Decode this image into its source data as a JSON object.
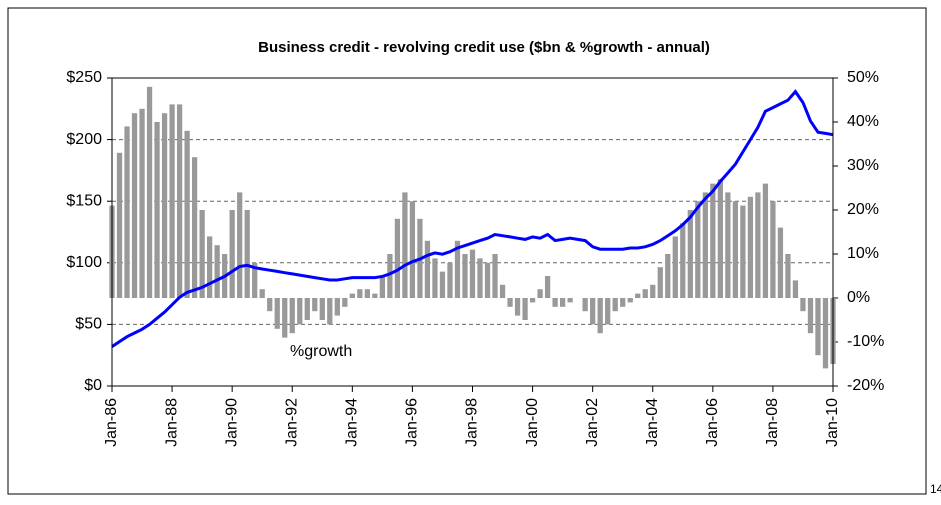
{
  "chart_data": {
    "type": "bar_line",
    "title": "Business credit - revolving credit use ($bn & %growth - annual)",
    "annotations": [
      "%growth"
    ],
    "page_number": "14",
    "categories": [
      "Jan-86",
      null,
      null,
      null,
      null,
      null,
      null,
      null,
      "Jan-88",
      null,
      null,
      null,
      null,
      null,
      null,
      null,
      "Jan-90",
      null,
      null,
      null,
      null,
      null,
      null,
      null,
      "Jan-92",
      null,
      null,
      null,
      null,
      null,
      null,
      null,
      "Jan-94",
      null,
      null,
      null,
      null,
      null,
      null,
      null,
      "Jan-96",
      null,
      null,
      null,
      null,
      null,
      null,
      null,
      "Jan-98",
      null,
      null,
      null,
      null,
      null,
      null,
      null,
      "Jan-00",
      null,
      null,
      null,
      null,
      null,
      null,
      null,
      "Jan-02",
      null,
      null,
      null,
      null,
      null,
      null,
      null,
      "Jan-04",
      null,
      null,
      null,
      null,
      null,
      null,
      null,
      "Jan-06",
      null,
      null,
      null,
      null,
      null,
      null,
      null,
      "Jan-08",
      null,
      null,
      null,
      null,
      null,
      null,
      null,
      "Jan-10"
    ],
    "series": [
      {
        "name": "%growth",
        "type": "bar",
        "axis": "y2",
        "color": "#999999",
        "values": [
          21,
          33,
          39,
          42,
          43,
          48,
          40,
          42,
          44,
          44,
          38,
          32,
          20,
          14,
          12,
          10,
          20,
          24,
          20,
          8,
          2,
          -3,
          -7,
          -9,
          -8,
          -6,
          -5,
          -3,
          -5,
          -6,
          -4,
          -2,
          1,
          2,
          2,
          1,
          5,
          10,
          18,
          24,
          22,
          18,
          13,
          9,
          6,
          8,
          13,
          10,
          11,
          9,
          8,
          10,
          3,
          -2,
          -4,
          -5,
          -1,
          2,
          5,
          -2,
          -2,
          -1,
          0,
          -3,
          -6,
          -8,
          -6,
          -3,
          -2,
          -1,
          1,
          2,
          3,
          7,
          10,
          14,
          17,
          20,
          22,
          24,
          26,
          27,
          24,
          22,
          21,
          23,
          24,
          26,
          22,
          16,
          10,
          4,
          -3,
          -8,
          -13,
          -16,
          -15
        ]
      },
      {
        "name": "$bn",
        "type": "line",
        "axis": "y",
        "color": "#0000ff",
        "values": [
          32,
          36,
          40,
          43,
          46,
          50,
          55,
          60,
          66,
          72,
          76,
          78,
          80,
          83,
          86,
          89,
          93,
          97,
          98,
          96,
          95,
          94,
          93,
          92,
          91,
          90,
          89,
          88,
          87,
          86,
          86,
          87,
          88,
          88,
          88,
          88,
          89,
          91,
          94,
          98,
          101,
          103,
          106,
          108,
          107,
          109,
          112,
          114,
          116,
          118,
          120,
          123,
          122,
          121,
          120,
          119,
          121,
          120,
          123,
          118,
          119,
          120,
          119,
          118,
          113,
          111,
          111,
          111,
          111,
          112,
          112,
          113,
          115,
          118,
          122,
          126,
          131,
          137,
          145,
          152,
          158,
          166,
          173,
          180,
          190,
          200,
          210,
          223,
          226,
          229,
          232,
          239,
          230,
          215,
          206,
          205,
          204
        ]
      }
    ],
    "ylim": [
      0,
      250
    ],
    "yticks": [
      {
        "value": 0,
        "label": "$0"
      },
      {
        "value": 50,
        "label": "$50"
      },
      {
        "value": 100,
        "label": "$100"
      },
      {
        "value": 150,
        "label": "$150"
      },
      {
        "value": 200,
        "label": "$200"
      },
      {
        "value": 250,
        "label": "$250"
      }
    ],
    "y2lim": [
      -20,
      50
    ],
    "y2ticks": [
      {
        "value": -20,
        "label": "-20%"
      },
      {
        "value": -10,
        "label": "-10%"
      },
      {
        "value": 0,
        "label": "0%"
      },
      {
        "value": 10,
        "label": "10%"
      },
      {
        "value": 20,
        "label": "20%"
      },
      {
        "value": 30,
        "label": "30%"
      },
      {
        "value": 40,
        "label": "40%"
      },
      {
        "value": 50,
        "label": "50%"
      }
    ],
    "grid": true
  }
}
